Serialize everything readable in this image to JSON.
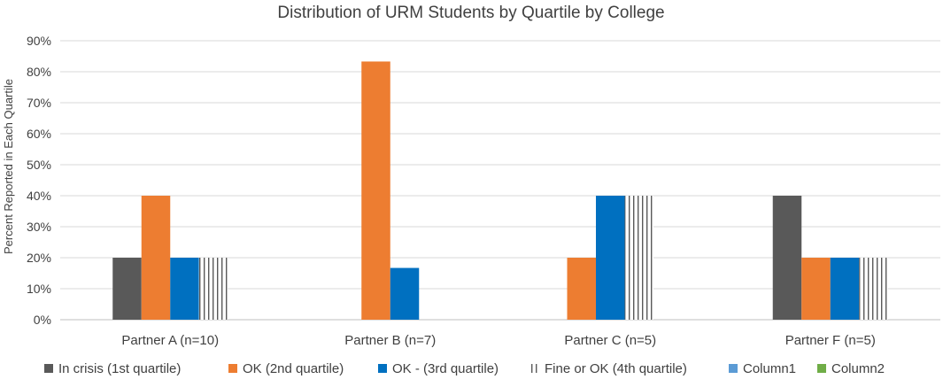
{
  "chart_data": {
    "type": "bar",
    "title": "Distribution of URM Students by Quartile by College",
    "xlabel": "",
    "ylabel": "Percent Reported in Each Quartile",
    "ylim": [
      0,
      90
    ],
    "yticks": [
      "0%",
      "10%",
      "20%",
      "30%",
      "40%",
      "50%",
      "60%",
      "70%",
      "80%",
      "90%"
    ],
    "categories": [
      "Partner A (n=10)",
      "Partner B (n=7)",
      "Partner C (n=5)",
      "Partner F (n=5)"
    ],
    "series": [
      {
        "name": "In crisis (1st quartile)",
        "color": "#595959",
        "pattern": "solid",
        "values": [
          20,
          0,
          0,
          40
        ]
      },
      {
        "name": "OK (2nd quartile)",
        "color": "#ED7D31",
        "pattern": "solid",
        "values": [
          40,
          83.3,
          20,
          20
        ]
      },
      {
        "name": "OK - (3rd quartile)",
        "color": "#0070C0",
        "pattern": "solid",
        "values": [
          20,
          16.7,
          40,
          20
        ]
      },
      {
        "name": "Fine or OK (4th quartile)",
        "color": "#595959",
        "pattern": "vertical-lines",
        "values": [
          20,
          0,
          40,
          20
        ]
      },
      {
        "name": "Column1",
        "color": "#5B9BD5",
        "pattern": "solid",
        "values": [
          0,
          0,
          0,
          0
        ]
      },
      {
        "name": "Column2",
        "color": "#70AD47",
        "pattern": "solid",
        "values": [
          0,
          0,
          0,
          0
        ]
      }
    ],
    "grid": true,
    "legend_position": "bottom"
  }
}
